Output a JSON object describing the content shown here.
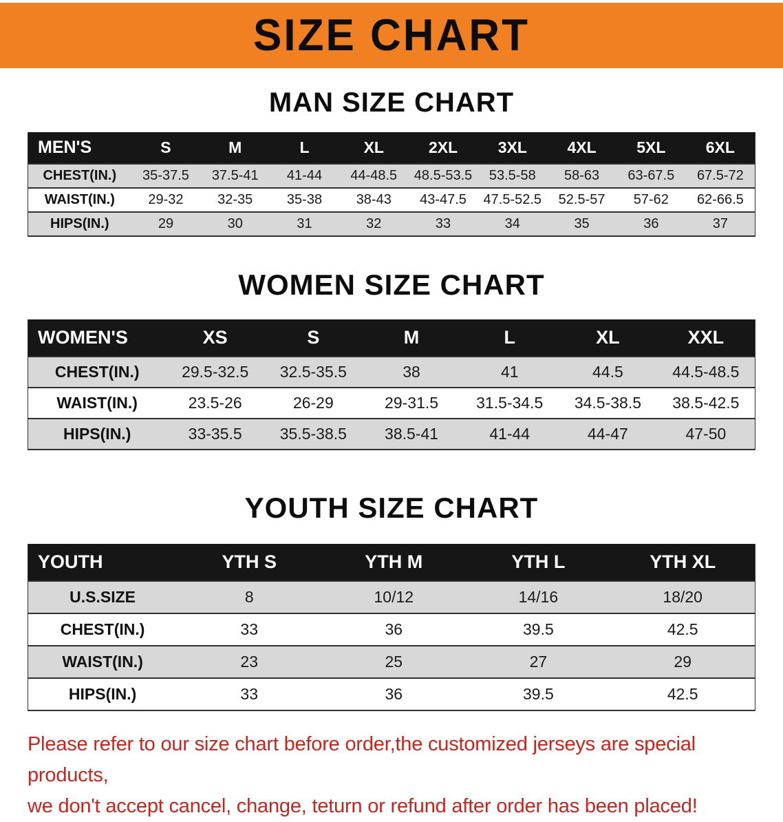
{
  "banner": {
    "title": "SIZE CHART"
  },
  "colors": {
    "banner-bg": "#f08021",
    "header-bg": "#161616",
    "stripe": "#d8d8d8",
    "rule": "#2f2f2f",
    "note-color": "#c7251d"
  },
  "sections": [
    {
      "heading": "MAN SIZE CHART",
      "table": {
        "header": [
          "MEN'S",
          "S",
          "M",
          "L",
          "XL",
          "2XL",
          "3XL",
          "4XL",
          "5XL",
          "6XL"
        ],
        "rows": [
          [
            "CHEST(IN.)",
            "35-37.5",
            "37.5-41",
            "41-44",
            "44-48.5",
            "48.5-53.5",
            "53.5-58",
            "58-63",
            "63-67.5",
            "67.5-72"
          ],
          [
            "WAIST(IN.)",
            "29-32",
            "32-35",
            "35-38",
            "38-43",
            "43-47.5",
            "47.5-52.5",
            "52.5-57",
            "57-62",
            "62-66.5"
          ],
          [
            "HIPS(IN.)",
            "29",
            "30",
            "31",
            "32",
            "33",
            "34",
            "35",
            "36",
            "37"
          ]
        ]
      }
    },
    {
      "heading": "WOMEN SIZE CHART",
      "table": {
        "header": [
          "WOMEN'S",
          "XS",
          "S",
          "M",
          "L",
          "XL",
          "XXL"
        ],
        "rows": [
          [
            "CHEST(IN.)",
            "29.5-32.5",
            "32.5-35.5",
            "38",
            "41",
            "44.5",
            "44.5-48.5"
          ],
          [
            "WAIST(IN.)",
            "23.5-26",
            "26-29",
            "29-31.5",
            "31.5-34.5",
            "34.5-38.5",
            "38.5-42.5"
          ],
          [
            "HIPS(IN.)",
            "33-35.5",
            "35.5-38.5",
            "38.5-41",
            "41-44",
            "44-47",
            "47-50"
          ]
        ]
      }
    },
    {
      "heading": "YOUTH SIZE CHART",
      "table": {
        "header": [
          "YOUTH",
          "YTH S",
          "YTH M",
          "YTH L",
          "YTH XL"
        ],
        "rows": [
          [
            "U.S.SIZE",
            "8",
            "10/12",
            "14/16",
            "18/20"
          ],
          [
            "CHEST(IN.)",
            "33",
            "36",
            "39.5",
            "42.5"
          ],
          [
            "WAIST(IN.)",
            "23",
            "25",
            "27",
            "29"
          ],
          [
            "HIPS(IN.)",
            "33",
            "36",
            "39.5",
            "42.5"
          ]
        ]
      }
    }
  ],
  "footer": {
    "line1": "Please refer to our size chart before order,the customized jerseys are special products,",
    "line2": "we don't accept cancel, change, teturn or refund after order has been placed!"
  }
}
